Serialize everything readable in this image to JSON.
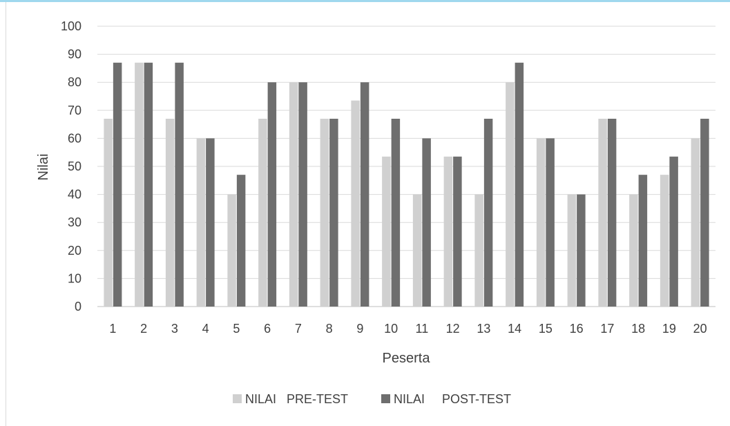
{
  "chart_data": {
    "type": "bar",
    "title": "",
    "xlabel": "Peserta",
    "ylabel": "Nilai",
    "ylim": [
      0,
      100
    ],
    "yticks": [
      0,
      10,
      20,
      30,
      40,
      50,
      60,
      70,
      80,
      90,
      100
    ],
    "categories": [
      "1",
      "2",
      "3",
      "4",
      "5",
      "6",
      "7",
      "8",
      "9",
      "10",
      "11",
      "12",
      "13",
      "14",
      "15",
      "16",
      "17",
      "18",
      "19",
      "20"
    ],
    "series": [
      {
        "name": "NILAI   PRE-TEST",
        "color": "#d0d0d0",
        "values": [
          67,
          87,
          67,
          60,
          40,
          67,
          80,
          67,
          73.5,
          53.5,
          40,
          53.5,
          40,
          80,
          60,
          40,
          67,
          40,
          47,
          60
        ]
      },
      {
        "name": "NILAI     POST-TEST",
        "color": "#6e6e6e",
        "values": [
          87,
          87,
          87,
          60,
          47,
          80,
          80,
          67,
          80,
          67,
          60,
          53.5,
          67,
          87,
          60,
          40,
          67,
          47,
          53.5,
          67
        ]
      }
    ],
    "grid": true,
    "gridColor": "#d9d9d9",
    "legend_position": "bottom"
  }
}
